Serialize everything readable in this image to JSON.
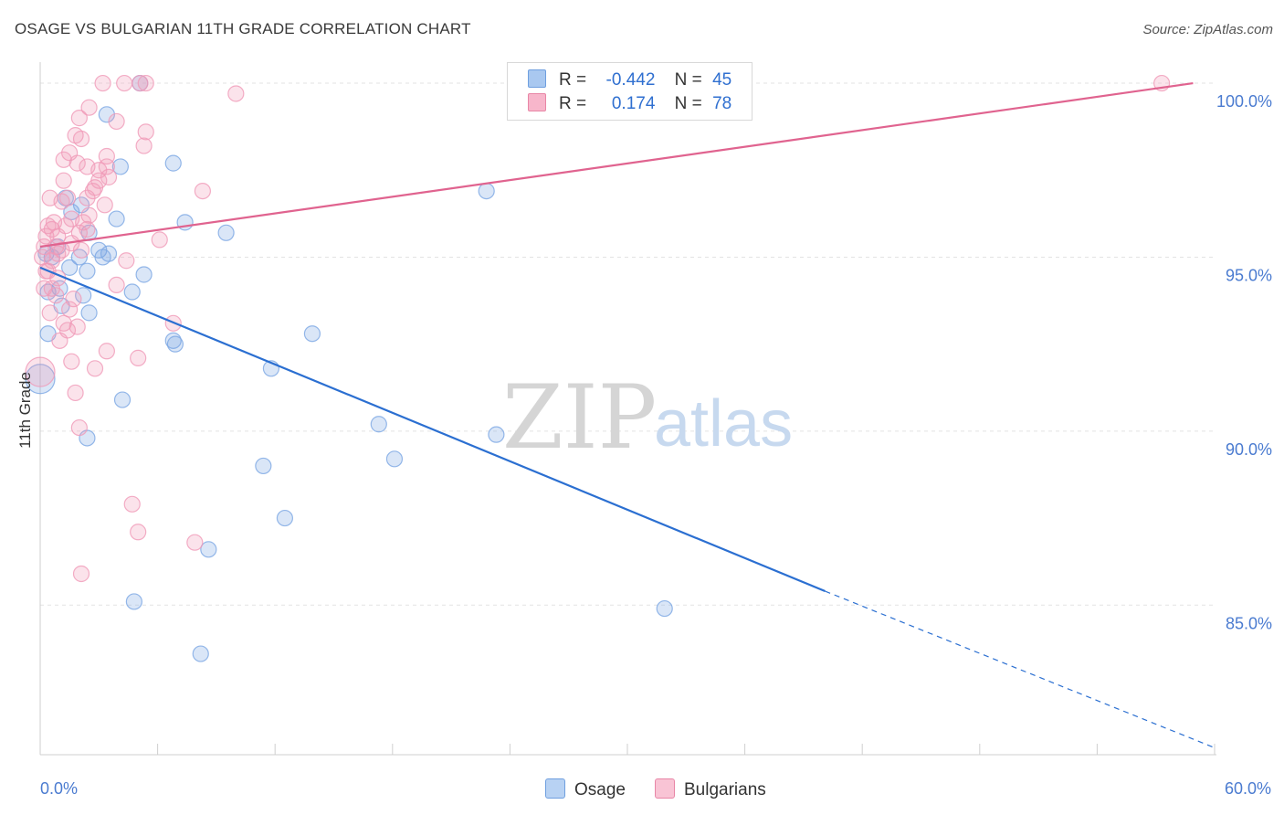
{
  "title": "OSAGE VS BULGARIAN 11TH GRADE CORRELATION CHART",
  "source": "Source: ZipAtlas.com",
  "watermark": {
    "zip": "ZIP",
    "atlas": "atlas"
  },
  "legend": {
    "rows": [
      {
        "r_label": "R =",
        "r_value": "-0.442",
        "n_label": "N =",
        "n_value": "45",
        "color": "#a9c8f0",
        "border": "#6f9fdf"
      },
      {
        "r_label": "R =",
        "r_value": "0.174",
        "n_label": "N =",
        "n_value": "78",
        "color": "#f7b6cb",
        "border": "#e886a6"
      }
    ]
  },
  "bottom_legend": [
    {
      "label": "Osage",
      "color": "#b8d2f3",
      "border": "#6f9fdf"
    },
    {
      "label": "Bulgarians",
      "color": "#f9c4d5",
      "border": "#e886a6"
    }
  ],
  "chart_data": {
    "type": "scatter",
    "title": "OSAGE VS BULGARIAN 11TH GRADE CORRELATION CHART",
    "xlabel": "",
    "ylabel": "11th Grade",
    "xlim": [
      0,
      60
    ],
    "ylim": [
      80.7,
      100.5
    ],
    "x_tick_labels": [
      {
        "value": 0,
        "label": "0.0%"
      },
      {
        "value": 60,
        "label": "60.0%"
      }
    ],
    "y_tick_labels": [
      {
        "value": 100,
        "label": "100.0%"
      },
      {
        "value": 95,
        "label": "95.0%"
      },
      {
        "value": 90,
        "label": "90.0%"
      },
      {
        "value": 85,
        "label": "85.0%"
      }
    ],
    "series": [
      {
        "name": "Osage",
        "color": "#7aa6e3",
        "line_color": "#2b6fd1",
        "trend": {
          "x0": 0,
          "y0": 94.7,
          "x1": 40.1,
          "y1": 85.4,
          "dash_to_x": 60,
          "dash_to_y": 80.9
        },
        "points": [
          {
            "x": 5.1,
            "y": 100.0
          },
          {
            "x": 3.4,
            "y": 99.1
          },
          {
            "x": 6.8,
            "y": 97.7
          },
          {
            "x": 4.1,
            "y": 97.6
          },
          {
            "x": 22.8,
            "y": 96.9
          },
          {
            "x": 3.9,
            "y": 96.1
          },
          {
            "x": 7.4,
            "y": 96.0
          },
          {
            "x": 9.5,
            "y": 95.7
          },
          {
            "x": 2.5,
            "y": 95.7
          },
          {
            "x": 2.0,
            "y": 95.0
          },
          {
            "x": 3.0,
            "y": 95.2
          },
          {
            "x": 3.2,
            "y": 95.0
          },
          {
            "x": 3.5,
            "y": 95.1
          },
          {
            "x": 1.5,
            "y": 94.7
          },
          {
            "x": 2.4,
            "y": 94.6
          },
          {
            "x": 5.3,
            "y": 94.5
          },
          {
            "x": 0.4,
            "y": 94.0
          },
          {
            "x": 4.7,
            "y": 94.0
          },
          {
            "x": 2.2,
            "y": 93.9
          },
          {
            "x": 1.1,
            "y": 93.6
          },
          {
            "x": 2.5,
            "y": 93.4
          },
          {
            "x": 0.4,
            "y": 92.8
          },
          {
            "x": 13.9,
            "y": 92.8
          },
          {
            "x": 6.8,
            "y": 92.6
          },
          {
            "x": 6.9,
            "y": 92.5
          },
          {
            "x": 11.8,
            "y": 91.8
          },
          {
            "x": 0.0,
            "y": 91.5
          },
          {
            "x": 4.2,
            "y": 90.9
          },
          {
            "x": 17.3,
            "y": 90.2
          },
          {
            "x": 23.3,
            "y": 89.9
          },
          {
            "x": 2.4,
            "y": 89.8
          },
          {
            "x": 18.1,
            "y": 89.2
          },
          {
            "x": 11.4,
            "y": 89.0
          },
          {
            "x": 12.5,
            "y": 87.5
          },
          {
            "x": 8.6,
            "y": 86.6
          },
          {
            "x": 31.9,
            "y": 84.9
          },
          {
            "x": 4.8,
            "y": 85.1
          },
          {
            "x": 8.2,
            "y": 83.6
          },
          {
            "x": 1.0,
            "y": 94.1
          },
          {
            "x": 0.9,
            "y": 95.3
          },
          {
            "x": 1.6,
            "y": 96.3
          },
          {
            "x": 0.3,
            "y": 95.1
          },
          {
            "x": 1.3,
            "y": 96.7
          },
          {
            "x": 0.6,
            "y": 95.0
          },
          {
            "x": 2.1,
            "y": 96.5
          }
        ]
      },
      {
        "name": "Bulgarians",
        "color": "#f09ab8",
        "line_color": "#e0638f",
        "trend": {
          "x0": 0,
          "y0": 95.3,
          "x1": 58.9,
          "y1": 100.0
        },
        "points": [
          {
            "x": 3.2,
            "y": 100.0
          },
          {
            "x": 4.3,
            "y": 100.0
          },
          {
            "x": 5.4,
            "y": 100.0
          },
          {
            "x": 5.1,
            "y": 100.0
          },
          {
            "x": 57.3,
            "y": 100.0
          },
          {
            "x": 10.0,
            "y": 99.7
          },
          {
            "x": 2.5,
            "y": 99.3
          },
          {
            "x": 2.0,
            "y": 99.0
          },
          {
            "x": 3.9,
            "y": 98.9
          },
          {
            "x": 5.4,
            "y": 98.6
          },
          {
            "x": 1.8,
            "y": 98.5
          },
          {
            "x": 2.1,
            "y": 98.4
          },
          {
            "x": 5.3,
            "y": 98.2
          },
          {
            "x": 1.5,
            "y": 98.0
          },
          {
            "x": 1.2,
            "y": 97.8
          },
          {
            "x": 3.4,
            "y": 97.9
          },
          {
            "x": 3.4,
            "y": 97.6
          },
          {
            "x": 3.5,
            "y": 97.3
          },
          {
            "x": 2.4,
            "y": 97.6
          },
          {
            "x": 3.0,
            "y": 97.5
          },
          {
            "x": 3.0,
            "y": 97.2
          },
          {
            "x": 1.2,
            "y": 97.2
          },
          {
            "x": 2.8,
            "y": 97.0
          },
          {
            "x": 8.3,
            "y": 96.9
          },
          {
            "x": 0.5,
            "y": 96.7
          },
          {
            "x": 1.1,
            "y": 96.6
          },
          {
            "x": 2.4,
            "y": 96.7
          },
          {
            "x": 3.3,
            "y": 96.5
          },
          {
            "x": 1.4,
            "y": 96.7
          },
          {
            "x": 2.5,
            "y": 96.2
          },
          {
            "x": 1.6,
            "y": 96.1
          },
          {
            "x": 2.2,
            "y": 96.0
          },
          {
            "x": 1.3,
            "y": 95.9
          },
          {
            "x": 0.6,
            "y": 95.8
          },
          {
            "x": 2.4,
            "y": 95.8
          },
          {
            "x": 2.0,
            "y": 95.7
          },
          {
            "x": 0.9,
            "y": 95.6
          },
          {
            "x": 0.3,
            "y": 95.6
          },
          {
            "x": 6.1,
            "y": 95.5
          },
          {
            "x": 1.6,
            "y": 95.4
          },
          {
            "x": 0.8,
            "y": 95.3
          },
          {
            "x": 0.2,
            "y": 95.3
          },
          {
            "x": 0.9,
            "y": 95.1
          },
          {
            "x": 2.1,
            "y": 95.2
          },
          {
            "x": 0.1,
            "y": 95.0
          },
          {
            "x": 4.4,
            "y": 94.9
          },
          {
            "x": 0.6,
            "y": 94.9
          },
          {
            "x": 0.4,
            "y": 94.6
          },
          {
            "x": 0.9,
            "y": 94.4
          },
          {
            "x": 0.6,
            "y": 94.1
          },
          {
            "x": 3.9,
            "y": 94.2
          },
          {
            "x": 0.2,
            "y": 94.1
          },
          {
            "x": 0.8,
            "y": 93.9
          },
          {
            "x": 1.7,
            "y": 93.8
          },
          {
            "x": 1.5,
            "y": 93.5
          },
          {
            "x": 1.2,
            "y": 93.1
          },
          {
            "x": 1.9,
            "y": 93.0
          },
          {
            "x": 6.8,
            "y": 93.1
          },
          {
            "x": 1.4,
            "y": 92.9
          },
          {
            "x": 1.0,
            "y": 92.6
          },
          {
            "x": 3.4,
            "y": 92.3
          },
          {
            "x": 5.0,
            "y": 92.1
          },
          {
            "x": 1.6,
            "y": 92.0
          },
          {
            "x": 2.8,
            "y": 91.8
          },
          {
            "x": 0.0,
            "y": 91.7
          },
          {
            "x": 1.8,
            "y": 91.1
          },
          {
            "x": 2.0,
            "y": 90.1
          },
          {
            "x": 4.7,
            "y": 87.9
          },
          {
            "x": 5.0,
            "y": 87.1
          },
          {
            "x": 7.9,
            "y": 86.8
          },
          {
            "x": 2.1,
            "y": 85.9
          },
          {
            "x": 0.4,
            "y": 95.9
          },
          {
            "x": 0.7,
            "y": 96.0
          },
          {
            "x": 1.1,
            "y": 95.2
          },
          {
            "x": 2.7,
            "y": 96.9
          },
          {
            "x": 0.3,
            "y": 94.6
          },
          {
            "x": 1.9,
            "y": 97.7
          },
          {
            "x": 0.5,
            "y": 93.4
          }
        ]
      }
    ]
  }
}
